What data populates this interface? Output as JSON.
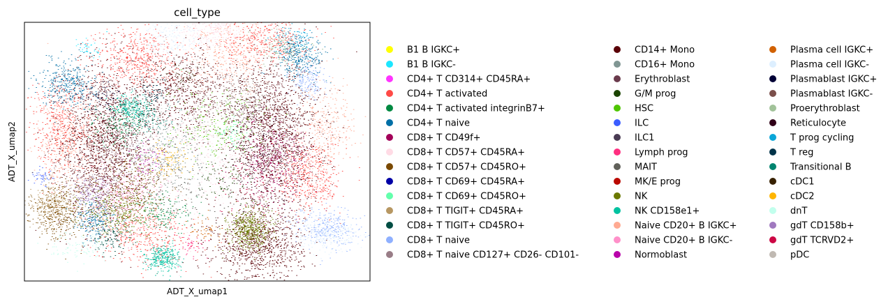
{
  "chart_data": {
    "type": "scatter",
    "title": "cell_type",
    "xlabel": "ADT_X_umap1",
    "ylabel": "ADT_X_umap2",
    "ticks_visible": false,
    "grid": false,
    "legend_placement": "right",
    "legend_columns": 3,
    "categories": [
      {
        "name": "B1 B IGKC+",
        "color": "#ffff00"
      },
      {
        "name": "B1 B IGKC-",
        "color": "#1ce6ff"
      },
      {
        "name": "CD4+ T CD314+ CD45RA+",
        "color": "#ff34ff"
      },
      {
        "name": "CD4+ T activated",
        "color": "#ff4a46"
      },
      {
        "name": "CD4+ T activated integrinB7+",
        "color": "#008941"
      },
      {
        "name": "CD4+ T naive",
        "color": "#006fa6"
      },
      {
        "name": "CD8+ T CD49f+",
        "color": "#a30059"
      },
      {
        "name": "CD8+ T CD57+ CD45RA+",
        "color": "#ffdbe5"
      },
      {
        "name": "CD8+ T CD57+ CD45RO+",
        "color": "#7a4900"
      },
      {
        "name": "CD8+ T CD69+ CD45RA+",
        "color": "#0000a6"
      },
      {
        "name": "CD8+ T CD69+ CD45RO+",
        "color": "#63ffac"
      },
      {
        "name": "CD8+ T TIGIT+ CD45RA+",
        "color": "#b79762"
      },
      {
        "name": "CD8+ T TIGIT+ CD45RO+",
        "color": "#004d43"
      },
      {
        "name": "CD8+ T naive",
        "color": "#8fb0ff"
      },
      {
        "name": "CD8+ T naive CD127+ CD26- CD101-",
        "color": "#997d87"
      },
      {
        "name": "CD14+ Mono",
        "color": "#5a0007"
      },
      {
        "name": "CD16+ Mono",
        "color": "#809693"
      },
      {
        "name": "Erythroblast",
        "color": "#6a3a4c"
      },
      {
        "name": "G/M prog",
        "color": "#1b4400"
      },
      {
        "name": "HSC",
        "color": "#4fc601"
      },
      {
        "name": "ILC",
        "color": "#3b5dff"
      },
      {
        "name": "ILC1",
        "color": "#4a3b53"
      },
      {
        "name": "Lymph prog",
        "color": "#ff2f80"
      },
      {
        "name": "MAIT",
        "color": "#61615a"
      },
      {
        "name": "MK/E prog",
        "color": "#ba0900"
      },
      {
        "name": "NK",
        "color": "#6b7900"
      },
      {
        "name": "NK CD158e1+",
        "color": "#00c2a0"
      },
      {
        "name": "Naive CD20+ B IGKC+",
        "color": "#ffaa92"
      },
      {
        "name": "Naive CD20+ B IGKC-",
        "color": "#ff90c9"
      },
      {
        "name": "Normoblast",
        "color": "#b903aa"
      },
      {
        "name": "Plasma cell IGKC+",
        "color": "#d16100"
      },
      {
        "name": "Plasma cell IGKC-",
        "color": "#ddefff"
      },
      {
        "name": "Plasmablast IGKC+",
        "color": "#000035"
      },
      {
        "name": "Plasmablast IGKC-",
        "color": "#7b4f4b"
      },
      {
        "name": "Proerythroblast",
        "color": "#a1c299"
      },
      {
        "name": "Reticulocyte",
        "color": "#300018"
      },
      {
        "name": "T prog cycling",
        "color": "#0aa6d8"
      },
      {
        "name": "T reg",
        "color": "#013349"
      },
      {
        "name": "Transitional B",
        "color": "#00846f"
      },
      {
        "name": "cDC1",
        "color": "#372101"
      },
      {
        "name": "cDC2",
        "color": "#ffb500"
      },
      {
        "name": "dnT",
        "color": "#c2ffed"
      },
      {
        "name": "gdT CD158b+",
        "color": "#a079bf"
      },
      {
        "name": "gdT TCRVD2+",
        "color": "#cc0744"
      },
      {
        "name": "pDC",
        "color": "#c0b9b2"
      }
    ],
    "clusters": [
      {
        "type": "CD14+ Mono",
        "x": -5.5,
        "y": 0.5,
        "sx": 1.2,
        "sy": 2.4,
        "n": 1500
      },
      {
        "type": "CD14+ Mono",
        "x": 4.5,
        "y": 1.0,
        "sx": 1.3,
        "sy": 2.2,
        "n": 1500
      },
      {
        "type": "CD14+ Mono",
        "x": 3.5,
        "y": -5.5,
        "sx": 1.3,
        "sy": 1.0,
        "n": 900
      },
      {
        "type": "CD14+ Mono",
        "x": -1.0,
        "y": 3.5,
        "sx": 1.5,
        "sy": 1.2,
        "n": 700
      },
      {
        "type": "CD16+ Mono",
        "x": -2.0,
        "y": 0.0,
        "sx": 1.2,
        "sy": 1.2,
        "n": 300
      },
      {
        "type": "CD4+ T activated",
        "x": -3.5,
        "y": 5.5,
        "sx": 1.2,
        "sy": 0.9,
        "n": 500
      },
      {
        "type": "CD4+ T activated",
        "x": -8.0,
        "y": 1.5,
        "sx": 0.9,
        "sy": 1.4,
        "n": 400
      },
      {
        "type": "CD4+ T activated",
        "x": 6.5,
        "y": -1.5,
        "sx": 0.9,
        "sy": 1.1,
        "n": 450
      },
      {
        "type": "CD4+ T activated",
        "x": -3.0,
        "y": -5.0,
        "sx": 1.4,
        "sy": 0.8,
        "n": 400
      },
      {
        "type": "CD4+ T activated",
        "x": 4.0,
        "y": 6.5,
        "sx": 1.2,
        "sy": 0.7,
        "n": 350
      },
      {
        "type": "CD4+ T naive",
        "x": -7.5,
        "y": 4.0,
        "sx": 0.8,
        "sy": 0.7,
        "n": 350
      },
      {
        "type": "CD4+ T naive",
        "x": 6.0,
        "y": 5.5,
        "sx": 0.7,
        "sy": 0.6,
        "n": 300
      },
      {
        "type": "CD4+ T naive",
        "x": -6.0,
        "y": -4.0,
        "sx": 0.6,
        "sy": 0.6,
        "n": 200
      },
      {
        "type": "Naive CD20+ B IGKC+",
        "x": -7.5,
        "y": 0.5,
        "sx": 1.0,
        "sy": 1.5,
        "n": 450
      },
      {
        "type": "Naive CD20+ B IGKC+",
        "x": 2.0,
        "y": 5.5,
        "sx": 1.2,
        "sy": 1.0,
        "n": 400
      },
      {
        "type": "Naive CD20+ B IGKC+",
        "x": 7.5,
        "y": 1.5,
        "sx": 0.8,
        "sy": 1.2,
        "n": 300
      },
      {
        "type": "Naive CD20+ B IGKC-",
        "x": -4.0,
        "y": -2.5,
        "sx": 1.0,
        "sy": 1.0,
        "n": 250
      },
      {
        "type": "CD8+ T CD57+ CD45RA+",
        "x": 0.0,
        "y": 0.5,
        "sx": 2.5,
        "sy": 2.5,
        "n": 700
      },
      {
        "type": "CD8+ T CD57+ CD45RA+",
        "x": 1.0,
        "y": 7.0,
        "sx": 1.0,
        "sy": 0.5,
        "n": 250
      },
      {
        "type": "CD8+ T CD57+ CD45RO+",
        "x": -8.0,
        "y": -3.5,
        "sx": 0.8,
        "sy": 0.8,
        "n": 400
      },
      {
        "type": "CD8+ T CD57+ CD45RO+",
        "x": -3.5,
        "y": -2.0,
        "sx": 1.0,
        "sy": 1.0,
        "n": 350
      },
      {
        "type": "NK",
        "x": 3.0,
        "y": -4.5,
        "sx": 0.6,
        "sy": 0.6,
        "n": 500
      },
      {
        "type": "NK",
        "x": -4.5,
        "y": -3.5,
        "sx": 1.0,
        "sy": 0.7,
        "n": 350
      },
      {
        "type": "NK CD158e1+",
        "x": -2.0,
        "y": -6.2,
        "sx": 0.5,
        "sy": 0.4,
        "n": 300
      },
      {
        "type": "NK CD158e1+",
        "x": -4.0,
        "y": 2.5,
        "sx": 0.5,
        "sy": 0.4,
        "n": 200
      },
      {
        "type": "CD8+ T naive",
        "x": 7.5,
        "y": -4.5,
        "sx": 1.0,
        "sy": 0.6,
        "n": 300
      },
      {
        "type": "CD8+ T naive",
        "x": 6.5,
        "y": 4.0,
        "sx": 0.5,
        "sy": 0.5,
        "n": 150
      },
      {
        "type": "CD8+ T TIGIT+ CD45RA+",
        "x": -8.5,
        "y": -3.0,
        "sx": 0.6,
        "sy": 0.6,
        "n": 200
      },
      {
        "type": "CD8+ T CD49f+",
        "x": 4.5,
        "y": -0.5,
        "sx": 1.0,
        "sy": 1.2,
        "n": 300
      },
      {
        "type": "Erythroblast",
        "x": -4.5,
        "y": 0.5,
        "sx": 1.0,
        "sy": 1.5,
        "n": 300
      },
      {
        "type": "Plasma cell IGKC-",
        "x": 7.5,
        "y": -4.8,
        "sx": 1.0,
        "sy": 0.5,
        "n": 250
      },
      {
        "type": "Plasma cell IGKC-",
        "x": -1.5,
        "y": 6.5,
        "sx": 1.0,
        "sy": 0.6,
        "n": 200
      },
      {
        "type": "HSC",
        "x": 1.0,
        "y": 1.5,
        "sx": 1.5,
        "sy": 1.0,
        "n": 200
      },
      {
        "type": "CD4+ T activated integrinB7+",
        "x": -4.5,
        "y": 1.5,
        "sx": 0.7,
        "sy": 0.6,
        "n": 150
      },
      {
        "type": "CD4+ T activated integrinB7+",
        "x": -2.0,
        "y": -3.5,
        "sx": 0.8,
        "sy": 0.6,
        "n": 150
      },
      {
        "type": "Plasmablast IGKC-",
        "x": 2.5,
        "y": 3.0,
        "sx": 1.0,
        "sy": 0.8,
        "n": 250
      },
      {
        "type": "Reticulocyte",
        "x": 3.5,
        "y": 0.0,
        "sx": 1.0,
        "sy": 2.0,
        "n": 300
      },
      {
        "type": "pDC",
        "x": 0.5,
        "y": 2.0,
        "sx": 2.0,
        "sy": 1.5,
        "n": 250
      },
      {
        "type": "cDC2",
        "x": -1.5,
        "y": -0.5,
        "sx": 0.6,
        "sy": 0.5,
        "n": 80
      },
      {
        "type": "Proerythroblast",
        "x": 5.0,
        "y": 6.0,
        "sx": 0.8,
        "sy": 0.5,
        "n": 120
      },
      {
        "type": "gdT CD158b+",
        "x": -6.0,
        "y": -2.5,
        "sx": 0.6,
        "sy": 0.5,
        "n": 150
      },
      {
        "type": "Transitional B",
        "x": -3.0,
        "y": 2.0,
        "sx": 0.6,
        "sy": 0.5,
        "n": 150
      },
      {
        "type": "T prog cycling",
        "x": 5.5,
        "y": 6.5,
        "sx": 0.6,
        "sy": 0.4,
        "n": 100
      },
      {
        "type": "dnT",
        "x": -7.0,
        "y": -5.5,
        "sx": 1.0,
        "sy": 0.5,
        "n": 100
      },
      {
        "type": "CD8+ T TIGIT+ CD45RO+",
        "x": -5.0,
        "y": -5.0,
        "sx": 0.6,
        "sy": 0.5,
        "n": 100
      },
      {
        "type": "MAIT",
        "x": -0.5,
        "y": -2.0,
        "sx": 1.5,
        "sy": 1.0,
        "n": 120
      },
      {
        "type": "gdT TCRVD2+",
        "x": 3.0,
        "y": -2.0,
        "sx": 1.0,
        "sy": 1.0,
        "n": 100
      },
      {
        "type": "Plasmablast IGKC+",
        "x": -5.5,
        "y": 3.0,
        "sx": 0.5,
        "sy": 0.5,
        "n": 60
      },
      {
        "type": "ILC",
        "x": -9.0,
        "y": -1.5,
        "sx": 0.3,
        "sy": 0.3,
        "n": 40
      },
      {
        "type": "B1 B IGKC-",
        "x": -6.5,
        "y": 6.0,
        "sx": 0.4,
        "sy": 0.3,
        "n": 40
      },
      {
        "type": "CD8+ T naive CD127+ CD26- CD101-",
        "x": -6.5,
        "y": -2.0,
        "sx": 0.8,
        "sy": 0.6,
        "n": 100
      },
      {
        "type": "CD8+ T CD69+ CD45RO+",
        "x": 2.0,
        "y": 1.0,
        "sx": 0.5,
        "sy": 0.5,
        "n": 50
      },
      {
        "type": "Normoblast",
        "x": -3.0,
        "y": -0.5,
        "sx": 0.5,
        "sy": 0.5,
        "n": 50
      },
      {
        "type": "Lymph prog",
        "x": -0.5,
        "y": -5.5,
        "sx": 0.5,
        "sy": 0.4,
        "n": 50
      },
      {
        "type": "Plasma cell IGKC+",
        "x": 0.5,
        "y": -4.5,
        "sx": 0.5,
        "sy": 0.4,
        "n": 50
      },
      {
        "type": "T reg",
        "x": -2.5,
        "y": 3.5,
        "sx": 0.5,
        "sy": 0.4,
        "n": 60
      },
      {
        "type": "G/M prog",
        "x": 1.5,
        "y": -1.5,
        "sx": 0.8,
        "sy": 0.6,
        "n": 80
      },
      {
        "type": "cDC1",
        "x": -1.0,
        "y": 4.5,
        "sx": 0.6,
        "sy": 0.4,
        "n": 50
      }
    ]
  }
}
